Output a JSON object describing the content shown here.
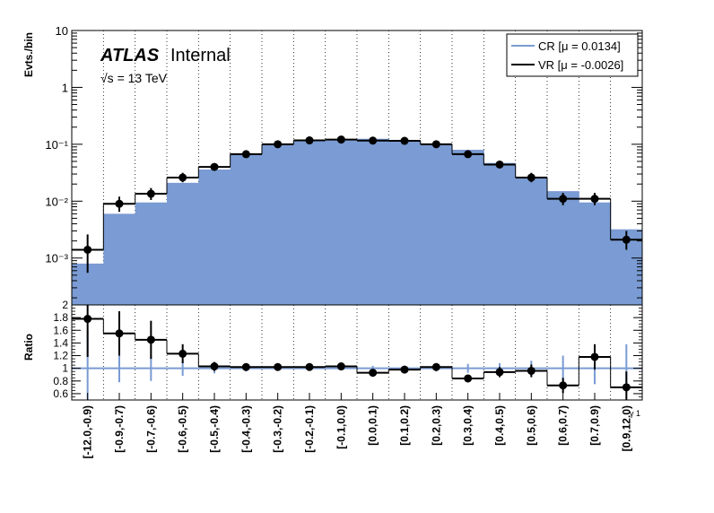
{
  "chart_data": [
    {
      "type": "bar",
      "panel": "main",
      "ylabel": "Evts./bin",
      "yscale": "log",
      "ylim": [
        0.00015,
        10
      ],
      "y_tick_labels": [
        "10⁻³",
        "10⁻²",
        "10⁻¹",
        "1",
        "10"
      ],
      "y_tick_values": [
        0.001,
        0.01,
        0.1,
        1,
        10
      ],
      "grid": "vertical dotted",
      "legend_position": "top-right",
      "annotations": {
        "experiment": "ATLAS",
        "status": "Internal",
        "energy": "√s = 13 TeV"
      },
      "categories": [
        "[-12.0,-0.9)",
        "[-0.9,-0.7)",
        "[-0.7,-0.6)",
        "[-0.6,-0.5)",
        "[-0.5,-0.4)",
        "[-0.4,-0.3)",
        "[-0.3,-0.2)",
        "[-0.2,-0.1)",
        "[-0.1,0.0)",
        "[0.0,0.1)",
        "[0.1,0.2)",
        "[0.2,0.3)",
        "[0.3,0.4)",
        "[0.4,0.5)",
        "[0.5,0.6)",
        "[0.6,0.7)",
        "[0.7,0.9)",
        "[0.9,12.0)"
      ],
      "series": [
        {
          "name": "CR [μ = 0.0134]",
          "style": "filled",
          "color": "#7a9bd3",
          "values": [
            0.0008,
            0.006,
            0.0095,
            0.021,
            0.036,
            0.066,
            0.098,
            0.115,
            0.12,
            0.125,
            0.117,
            0.098,
            0.08,
            0.047,
            0.027,
            0.015,
            0.0095,
            0.0032
          ]
        },
        {
          "name": "VR [μ = -0.0026]",
          "style": "step+markers",
          "color": "#000000",
          "values": [
            0.0014,
            0.009,
            0.0135,
            0.026,
            0.04,
            0.067,
            0.1,
            0.117,
            0.121,
            0.116,
            0.115,
            0.1,
            0.067,
            0.044,
            0.026,
            0.011,
            0.011,
            0.0021
          ],
          "errors_low": [
            0.00085,
            0.0025,
            0.003,
            0.0045,
            0.005,
            0.007,
            0.008,
            0.009,
            0.009,
            0.009,
            0.009,
            0.008,
            0.007,
            0.005,
            0.0045,
            0.0025,
            0.0025,
            0.0007
          ],
          "errors_high": [
            0.0012,
            0.003,
            0.0035,
            0.0055,
            0.006,
            0.008,
            0.009,
            0.01,
            0.01,
            0.01,
            0.01,
            0.009,
            0.008,
            0.006,
            0.0055,
            0.003,
            0.003,
            0.0009
          ]
        }
      ]
    },
    {
      "type": "line",
      "panel": "ratio",
      "ylabel": "Ratio",
      "ylim": [
        0.5,
        2.0
      ],
      "y_tick_labels": [
        "0.6",
        "0.8",
        "1",
        "1.2",
        "1.4",
        "1.6",
        "1.8",
        "2"
      ],
      "y_tick_values": [
        0.6,
        0.8,
        1.0,
        1.2,
        1.4,
        1.6,
        1.8,
        2.0
      ],
      "xlabel": "γ 1",
      "reference_line": 1,
      "categories": [
        "[-12.0,-0.9)",
        "[-0.9,-0.7)",
        "[-0.7,-0.6)",
        "[-0.6,-0.5)",
        "[-0.5,-0.4)",
        "[-0.4,-0.3)",
        "[-0.3,-0.2)",
        "[-0.2,-0.1)",
        "[-0.1,0.0)",
        "[0.0,0.1)",
        "[0.1,0.2)",
        "[0.2,0.3)",
        "[0.3,0.4)",
        "[0.4,0.5)",
        "[0.5,0.6)",
        "[0.6,0.7)",
        "[0.7,0.9)",
        "[0.9,12.0)"
      ],
      "cr_errors": [
        0.6,
        0.22,
        0.2,
        0.12,
        0.08,
        0.05,
        0.04,
        0.04,
        0.03,
        0.04,
        0.04,
        0.05,
        0.07,
        0.08,
        0.12,
        0.2,
        0.25,
        0.38
      ],
      "series": [
        {
          "name": "VR/CR",
          "values": [
            1.78,
            1.55,
            1.45,
            1.23,
            1.03,
            1.02,
            1.02,
            1.02,
            1.03,
            0.93,
            0.98,
            1.02,
            0.84,
            0.94,
            0.96,
            0.73,
            1.18,
            0.7
          ],
          "errors_low": [
            0.6,
            0.35,
            0.3,
            0.15,
            0.07,
            0.04,
            0.04,
            0.04,
            0.04,
            0.05,
            0.05,
            0.05,
            0.06,
            0.08,
            0.1,
            0.12,
            0.2,
            0.25
          ],
          "errors_high": [
            0.6,
            0.35,
            0.3,
            0.15,
            0.07,
            0.04,
            0.04,
            0.04,
            0.04,
            0.05,
            0.05,
            0.05,
            0.06,
            0.08,
            0.1,
            0.12,
            0.2,
            0.25
          ]
        }
      ]
    }
  ]
}
